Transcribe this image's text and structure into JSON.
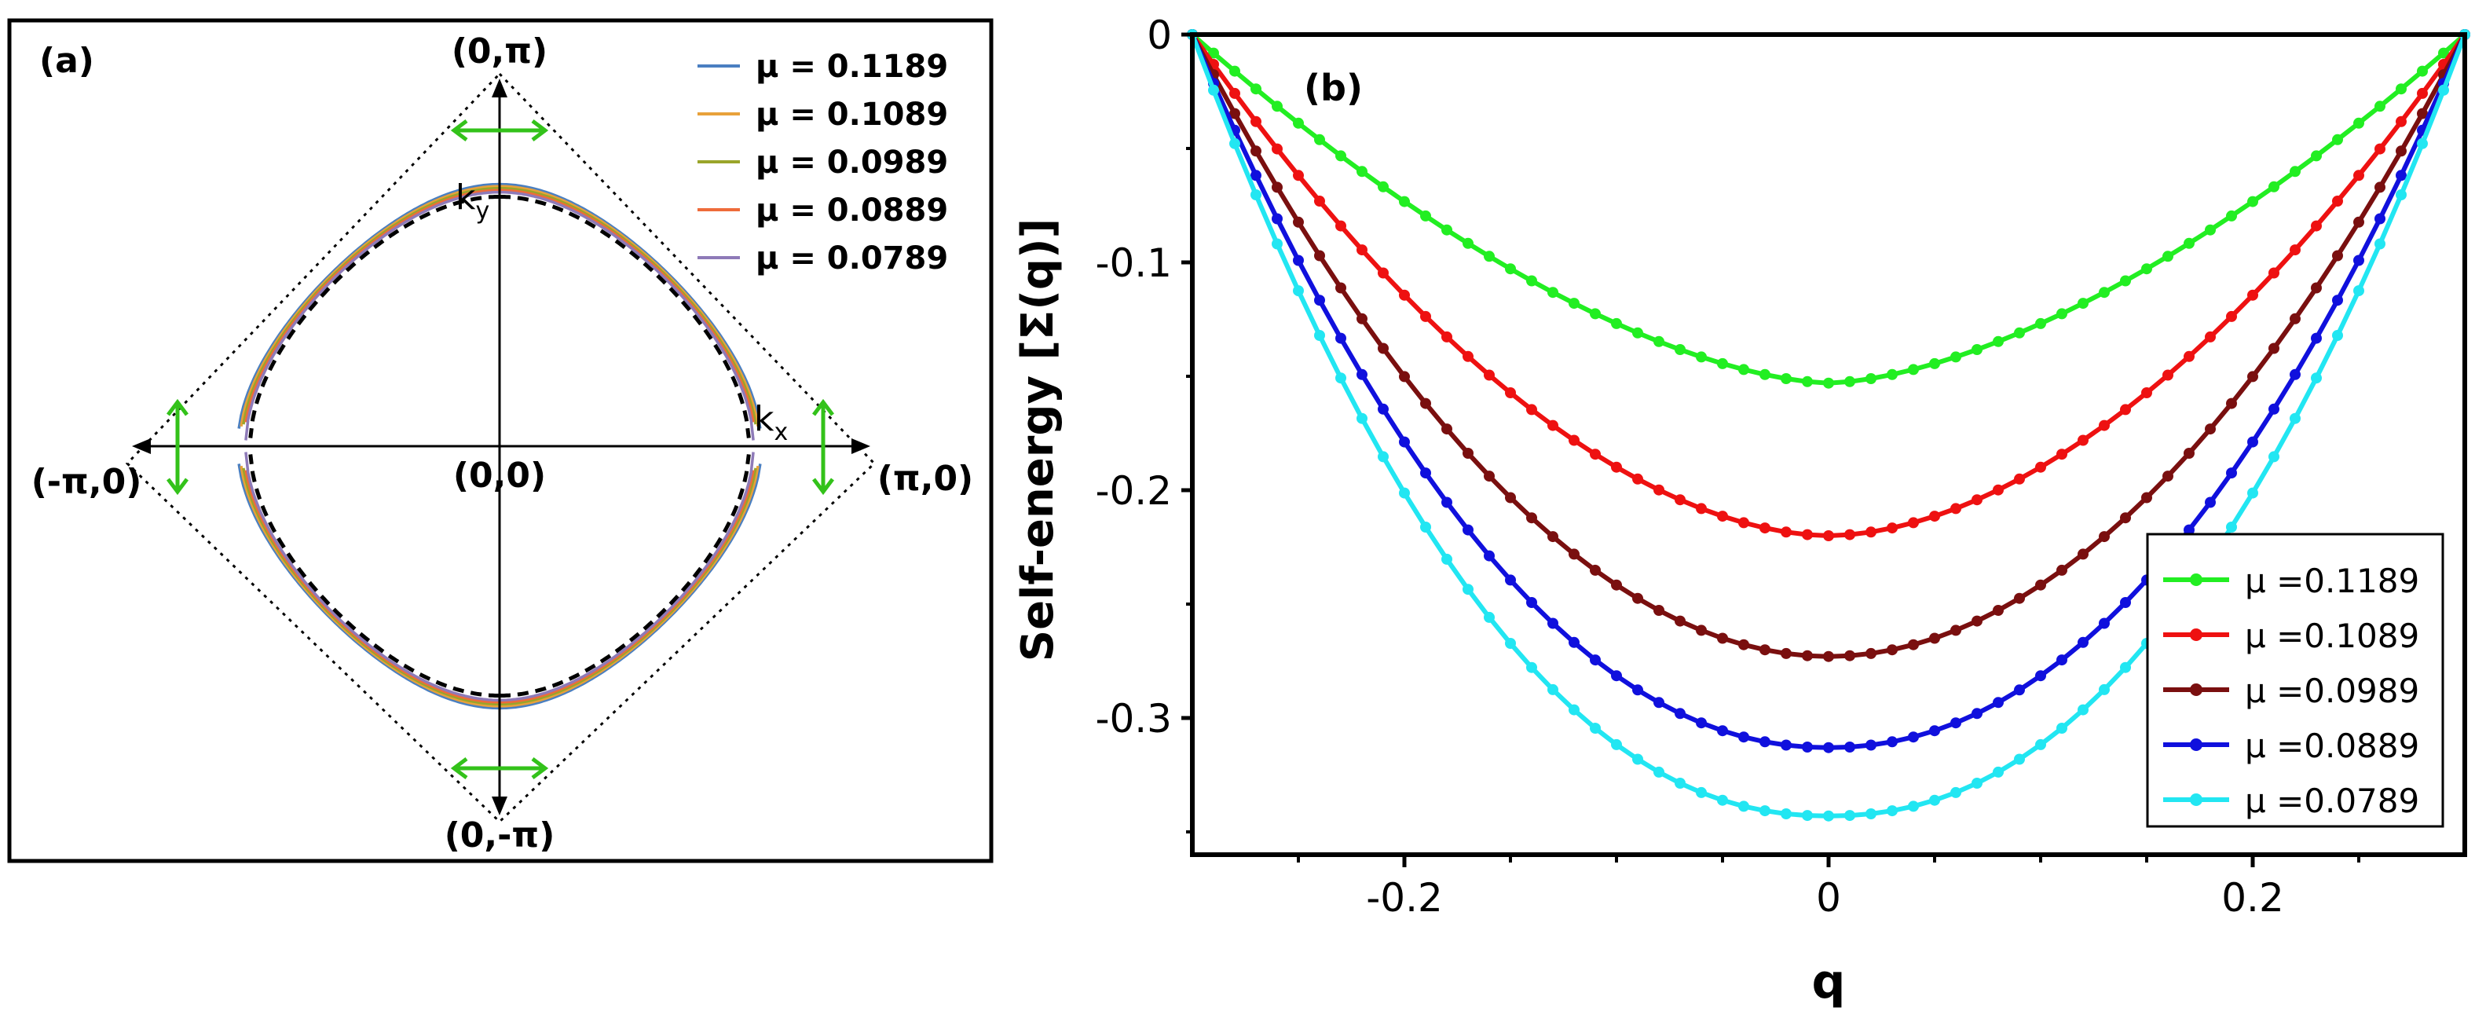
{
  "chart_data": [
    {
      "type": "line",
      "panel_label": "(a)",
      "description": "Fermi surface contours in the Brillouin zone",
      "point_labels": {
        "top": "(0,π)",
        "bottom": "(0,-π)",
        "left": "(-π,0)",
        "right": "(π,0)",
        "origin": "(0,0)"
      },
      "axis_labels": {
        "ky": "k",
        "ky_sub": "y",
        "kx": "k",
        "kx_sub": "x"
      },
      "series": [
        {
          "name": "μ = 0.1189",
          "mu": 0.1189,
          "color": "#4a7fc1"
        },
        {
          "name": "μ = 0.1089",
          "mu": 0.1089,
          "color": "#e8a13a"
        },
        {
          "name": "μ = 0.0989",
          "mu": 0.0989,
          "color": "#9aa52a"
        },
        {
          "name": "μ = 0.0889",
          "mu": 0.0889,
          "color": "#ee6b3a"
        },
        {
          "name": "μ = 0.0789",
          "mu": 0.0789,
          "color": "#8e7ab8"
        }
      ]
    },
    {
      "type": "line",
      "panel_label": "(b)",
      "xlabel": "q",
      "ylabel": "Self-energy [Σ(q)]",
      "xlim": [
        -0.3,
        0.3
      ],
      "ylim": [
        -0.36,
        0
      ],
      "xticks": [
        -0.2,
        0,
        0.2
      ],
      "xtick_labels": [
        "-0.2",
        "0",
        "0.2"
      ],
      "yticks": [
        0,
        -0.1,
        -0.2,
        -0.3
      ],
      "ytick_labels": [
        "0",
        "-0.1",
        "-0.2",
        "-0.3"
      ],
      "legend_position": "bottom-right",
      "series": [
        {
          "name": "μ =0.1189",
          "color": "#22ee22",
          "min_value": -0.153
        },
        {
          "name": "μ =0.1089",
          "color": "#ee1111",
          "min_value": -0.22
        },
        {
          "name": "μ =0.0989",
          "color": "#7a0f0f",
          "min_value": -0.273
        },
        {
          "name": "μ =0.0889",
          "color": "#1010dd",
          "min_value": -0.313
        },
        {
          "name": "μ =0.0789",
          "color": "#22e6f2",
          "min_value": -0.343
        }
      ]
    }
  ]
}
